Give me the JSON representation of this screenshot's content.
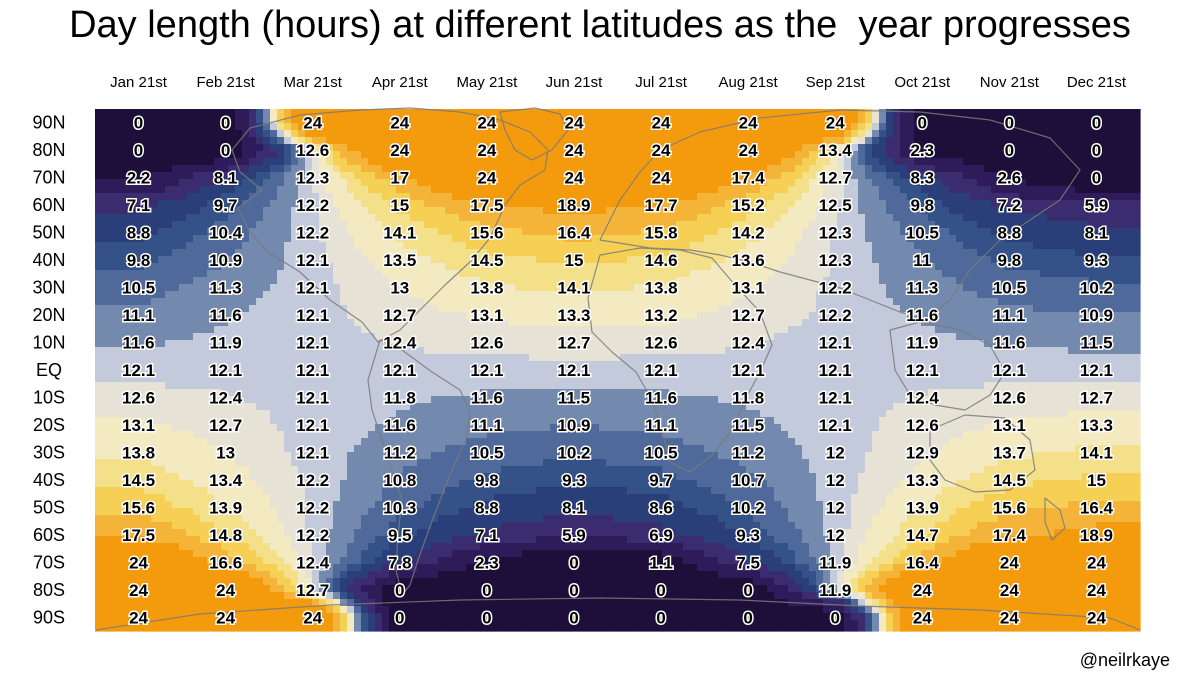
{
  "title": "Day length (hours) at different latitudes as the  year progresses",
  "credit": "@neilrkaye",
  "chart_data": {
    "type": "heatmap",
    "title": "Day length (hours) at different latitudes as the  year progresses",
    "x": [
      "Jan 21st",
      "Feb 21st",
      "Mar 21st",
      "Apr 21st",
      "May 21st",
      "Jun 21st",
      "Jul 21st",
      "Aug 21st",
      "Sep 21st",
      "Oct 21st",
      "Nov 21st",
      "Dec 21st"
    ],
    "y": [
      "90N",
      "80N",
      "70N",
      "60N",
      "50N",
      "40N",
      "30N",
      "20N",
      "10N",
      "EQ",
      "10S",
      "20S",
      "30S",
      "40S",
      "50S",
      "60S",
      "70S",
      "80S",
      "90S"
    ],
    "values": [
      [
        0,
        0,
        24,
        24,
        24,
        24,
        24,
        24,
        24,
        0,
        0,
        0
      ],
      [
        0,
        0,
        12.6,
        24,
        24,
        24,
        24,
        24,
        13.4,
        2.3,
        0,
        0
      ],
      [
        2.2,
        8.1,
        12.3,
        17,
        24,
        24,
        24,
        17.4,
        12.7,
        8.3,
        2.6,
        0
      ],
      [
        7.1,
        9.7,
        12.2,
        15,
        17.5,
        18.9,
        17.7,
        15.2,
        12.5,
        9.8,
        7.2,
        5.9
      ],
      [
        8.8,
        10.4,
        12.2,
        14.1,
        15.6,
        16.4,
        15.8,
        14.2,
        12.3,
        10.5,
        8.8,
        8.1
      ],
      [
        9.8,
        10.9,
        12.1,
        13.5,
        14.5,
        15,
        14.6,
        13.6,
        12.3,
        11,
        9.8,
        9.3
      ],
      [
        10.5,
        11.3,
        12.1,
        13,
        13.8,
        14.1,
        13.8,
        13.1,
        12.2,
        11.3,
        10.5,
        10.2
      ],
      [
        11.1,
        11.6,
        12.1,
        12.7,
        13.1,
        13.3,
        13.2,
        12.7,
        12.2,
        11.6,
        11.1,
        10.9
      ],
      [
        11.6,
        11.9,
        12.1,
        12.4,
        12.6,
        12.7,
        12.6,
        12.4,
        12.1,
        11.9,
        11.6,
        11.5
      ],
      [
        12.1,
        12.1,
        12.1,
        12.1,
        12.1,
        12.1,
        12.1,
        12.1,
        12.1,
        12.1,
        12.1,
        12.1
      ],
      [
        12.6,
        12.4,
        12.1,
        11.8,
        11.6,
        11.5,
        11.6,
        11.8,
        12.1,
        12.4,
        12.6,
        12.7
      ],
      [
        13.1,
        12.7,
        12.1,
        11.6,
        11.1,
        10.9,
        11.1,
        11.5,
        12.1,
        12.6,
        13.1,
        13.3
      ],
      [
        13.8,
        13,
        12.1,
        11.2,
        10.5,
        10.2,
        10.5,
        11.2,
        12,
        12.9,
        13.7,
        14.1
      ],
      [
        14.5,
        13.4,
        12.2,
        10.8,
        9.8,
        9.3,
        9.7,
        10.7,
        12,
        13.3,
        14.5,
        15
      ],
      [
        15.6,
        13.9,
        12.2,
        10.3,
        8.8,
        8.1,
        8.6,
        10.2,
        12,
        13.9,
        15.6,
        16.4
      ],
      [
        17.5,
        14.8,
        12.2,
        9.5,
        7.1,
        5.9,
        6.9,
        9.3,
        12,
        14.7,
        17.4,
        18.9
      ],
      [
        24,
        16.6,
        12.4,
        7.8,
        2.3,
        0,
        1.1,
        7.5,
        11.9,
        16.4,
        24,
        24
      ],
      [
        24,
        24,
        12.7,
        0,
        0,
        0,
        0,
        0,
        11.9,
        24,
        24,
        24
      ],
      [
        24,
        24,
        24,
        0,
        0,
        0,
        0,
        0,
        0,
        24,
        24,
        24
      ]
    ],
    "value_range": [
      0,
      24
    ],
    "colors": {
      "bands": [
        "#1e0e3a",
        "#2d1b5a",
        "#3b2c70",
        "#2a3f79",
        "#345287",
        "#4f6a9a",
        "#7389ad",
        "#c3cadb",
        "#e6e2d6",
        "#f4eac2",
        "#f5e08a",
        "#f6cf55",
        "#f4b43a",
        "#f49b0d"
      ],
      "band_edges": [
        0,
        3,
        5.5,
        7.5,
        9.1,
        10,
        10.9,
        11.7,
        12.35,
        13,
        13.9,
        14.8,
        16,
        18,
        24
      ]
    },
    "background": "world coastline map (Greenwich-centred)",
    "grid": false
  }
}
